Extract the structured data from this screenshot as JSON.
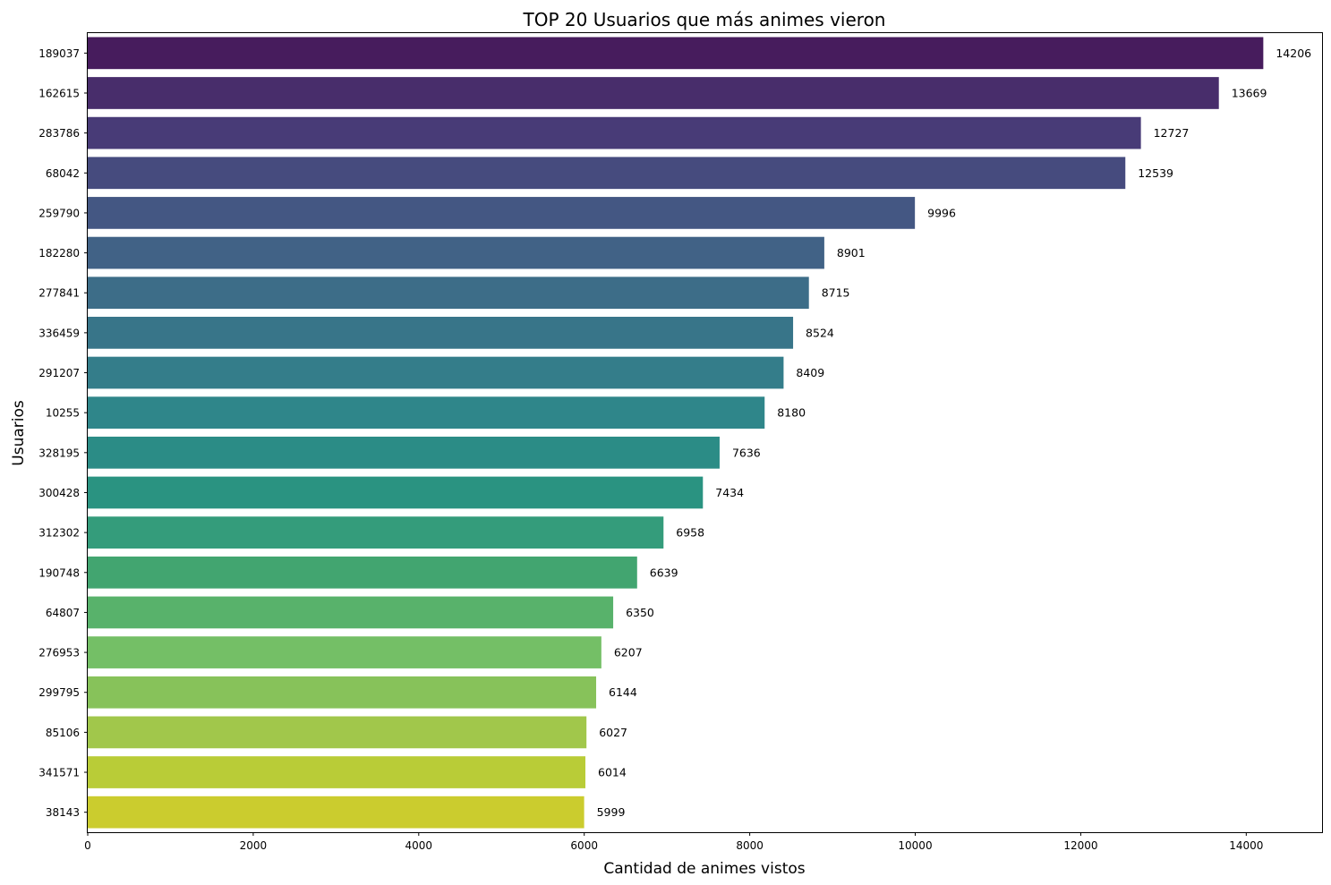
{
  "chart_data": {
    "type": "bar",
    "orientation": "horizontal",
    "title": "TOP 20 Usuarios que más animes vieron",
    "xlabel": "Cantidad de animes vistos",
    "ylabel": "Usuarios",
    "xlim": [
      0,
      14916
    ],
    "xticks": [
      0,
      2000,
      4000,
      6000,
      8000,
      10000,
      12000,
      14000
    ],
    "grid": false,
    "legend": "none",
    "palette": "viridis",
    "categories": [
      "189037",
      "162615",
      "283786",
      "68042",
      "259790",
      "182280",
      "277841",
      "336459",
      "291207",
      "10255",
      "328195",
      "300428",
      "312302",
      "190748",
      "64807",
      "276953",
      "299795",
      "85106",
      "341571",
      "38143"
    ],
    "values": [
      14206,
      13669,
      12727,
      12539,
      9996,
      8901,
      8715,
      8524,
      8409,
      8180,
      7636,
      7434,
      6958,
      6639,
      6350,
      6207,
      6144,
      6027,
      6014,
      5999
    ],
    "colors": [
      "#471c5d",
      "#482d6b",
      "#483b77",
      "#464b7e",
      "#445783",
      "#416286",
      "#3d6d88",
      "#387589",
      "#347d8a",
      "#2f868a",
      "#2b8c86",
      "#2a9381",
      "#349c7b",
      "#42a570",
      "#58b26b",
      "#74bf66",
      "#87c25a",
      "#a1c74b",
      "#b9cc37",
      "#cbcc2e"
    ],
    "data_labels": [
      "14206",
      "13669",
      "12727",
      "12539",
      "9996",
      "8901",
      "8715",
      "8524",
      "8409",
      "8180",
      "7636",
      "7434",
      "6958",
      "6639",
      "6350",
      "6207",
      "6144",
      "6027",
      "6014",
      "5999"
    ]
  }
}
